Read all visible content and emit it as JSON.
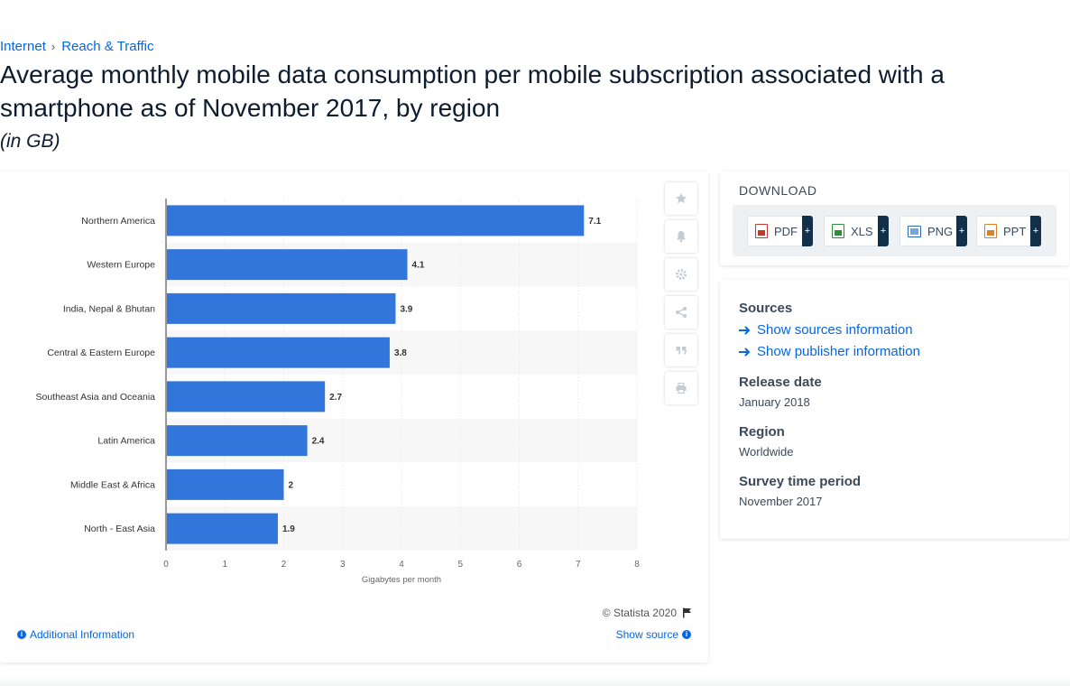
{
  "breadcrumb": {
    "items": [
      "Internet",
      "Reach & Traffic"
    ]
  },
  "title": "Average monthly mobile data consumption per mobile subscription associated with a smartphone as of November 2017, by region",
  "subtitle": "(in GB)",
  "chart_data": {
    "type": "bar",
    "orientation": "horizontal",
    "categories": [
      "Northern America",
      "Western Europe",
      "India, Nepal & Bhutan",
      "Central & Eastern Europe",
      "Southeast Asia and Oceania",
      "Latin America",
      "Middle East & Africa",
      "North - East Asia"
    ],
    "values": [
      7.1,
      4.1,
      3.9,
      3.8,
      2.7,
      2.4,
      2,
      1.9
    ],
    "value_labels": [
      "7.1",
      "4.1",
      "3.9",
      "3.8",
      "2.7",
      "2.4",
      "2",
      "1.9"
    ],
    "xlabel": "Gigabytes per month",
    "ylabel": "",
    "xlim": [
      0,
      8
    ],
    "xticks": [
      "0",
      "1",
      "2",
      "3",
      "4",
      "5",
      "6",
      "7",
      "8"
    ],
    "grid": true,
    "bar_color": "#3276dc"
  },
  "chart_footer": {
    "copyright": "© Statista 2020",
    "additional_info": "Additional Information",
    "show_source": "Show source"
  },
  "tools": [
    "star-icon",
    "bell-icon",
    "gear-icon",
    "share-icon",
    "quote-icon",
    "print-icon"
  ],
  "download": {
    "title": "DOWNLOAD",
    "buttons": [
      {
        "label": "PDF",
        "icon": "pdf-file-icon"
      },
      {
        "label": "XLS",
        "icon": "xls-file-icon"
      },
      {
        "label": "PNG",
        "icon": "png-file-icon"
      },
      {
        "label": "PPT",
        "icon": "ppt-file-icon"
      }
    ],
    "plus": "+"
  },
  "meta": {
    "sources_heading": "Sources",
    "show_sources": "Show sources information",
    "show_publisher": "Show publisher information",
    "release_heading": "Release date",
    "release_value": "January 2018",
    "region_heading": "Region",
    "region_value": "Worldwide",
    "survey_heading": "Survey time period",
    "survey_value": "November 2017"
  },
  "colors": {
    "accent": "#0666e5",
    "bar": "#3276dc",
    "dark": "#13304a"
  }
}
